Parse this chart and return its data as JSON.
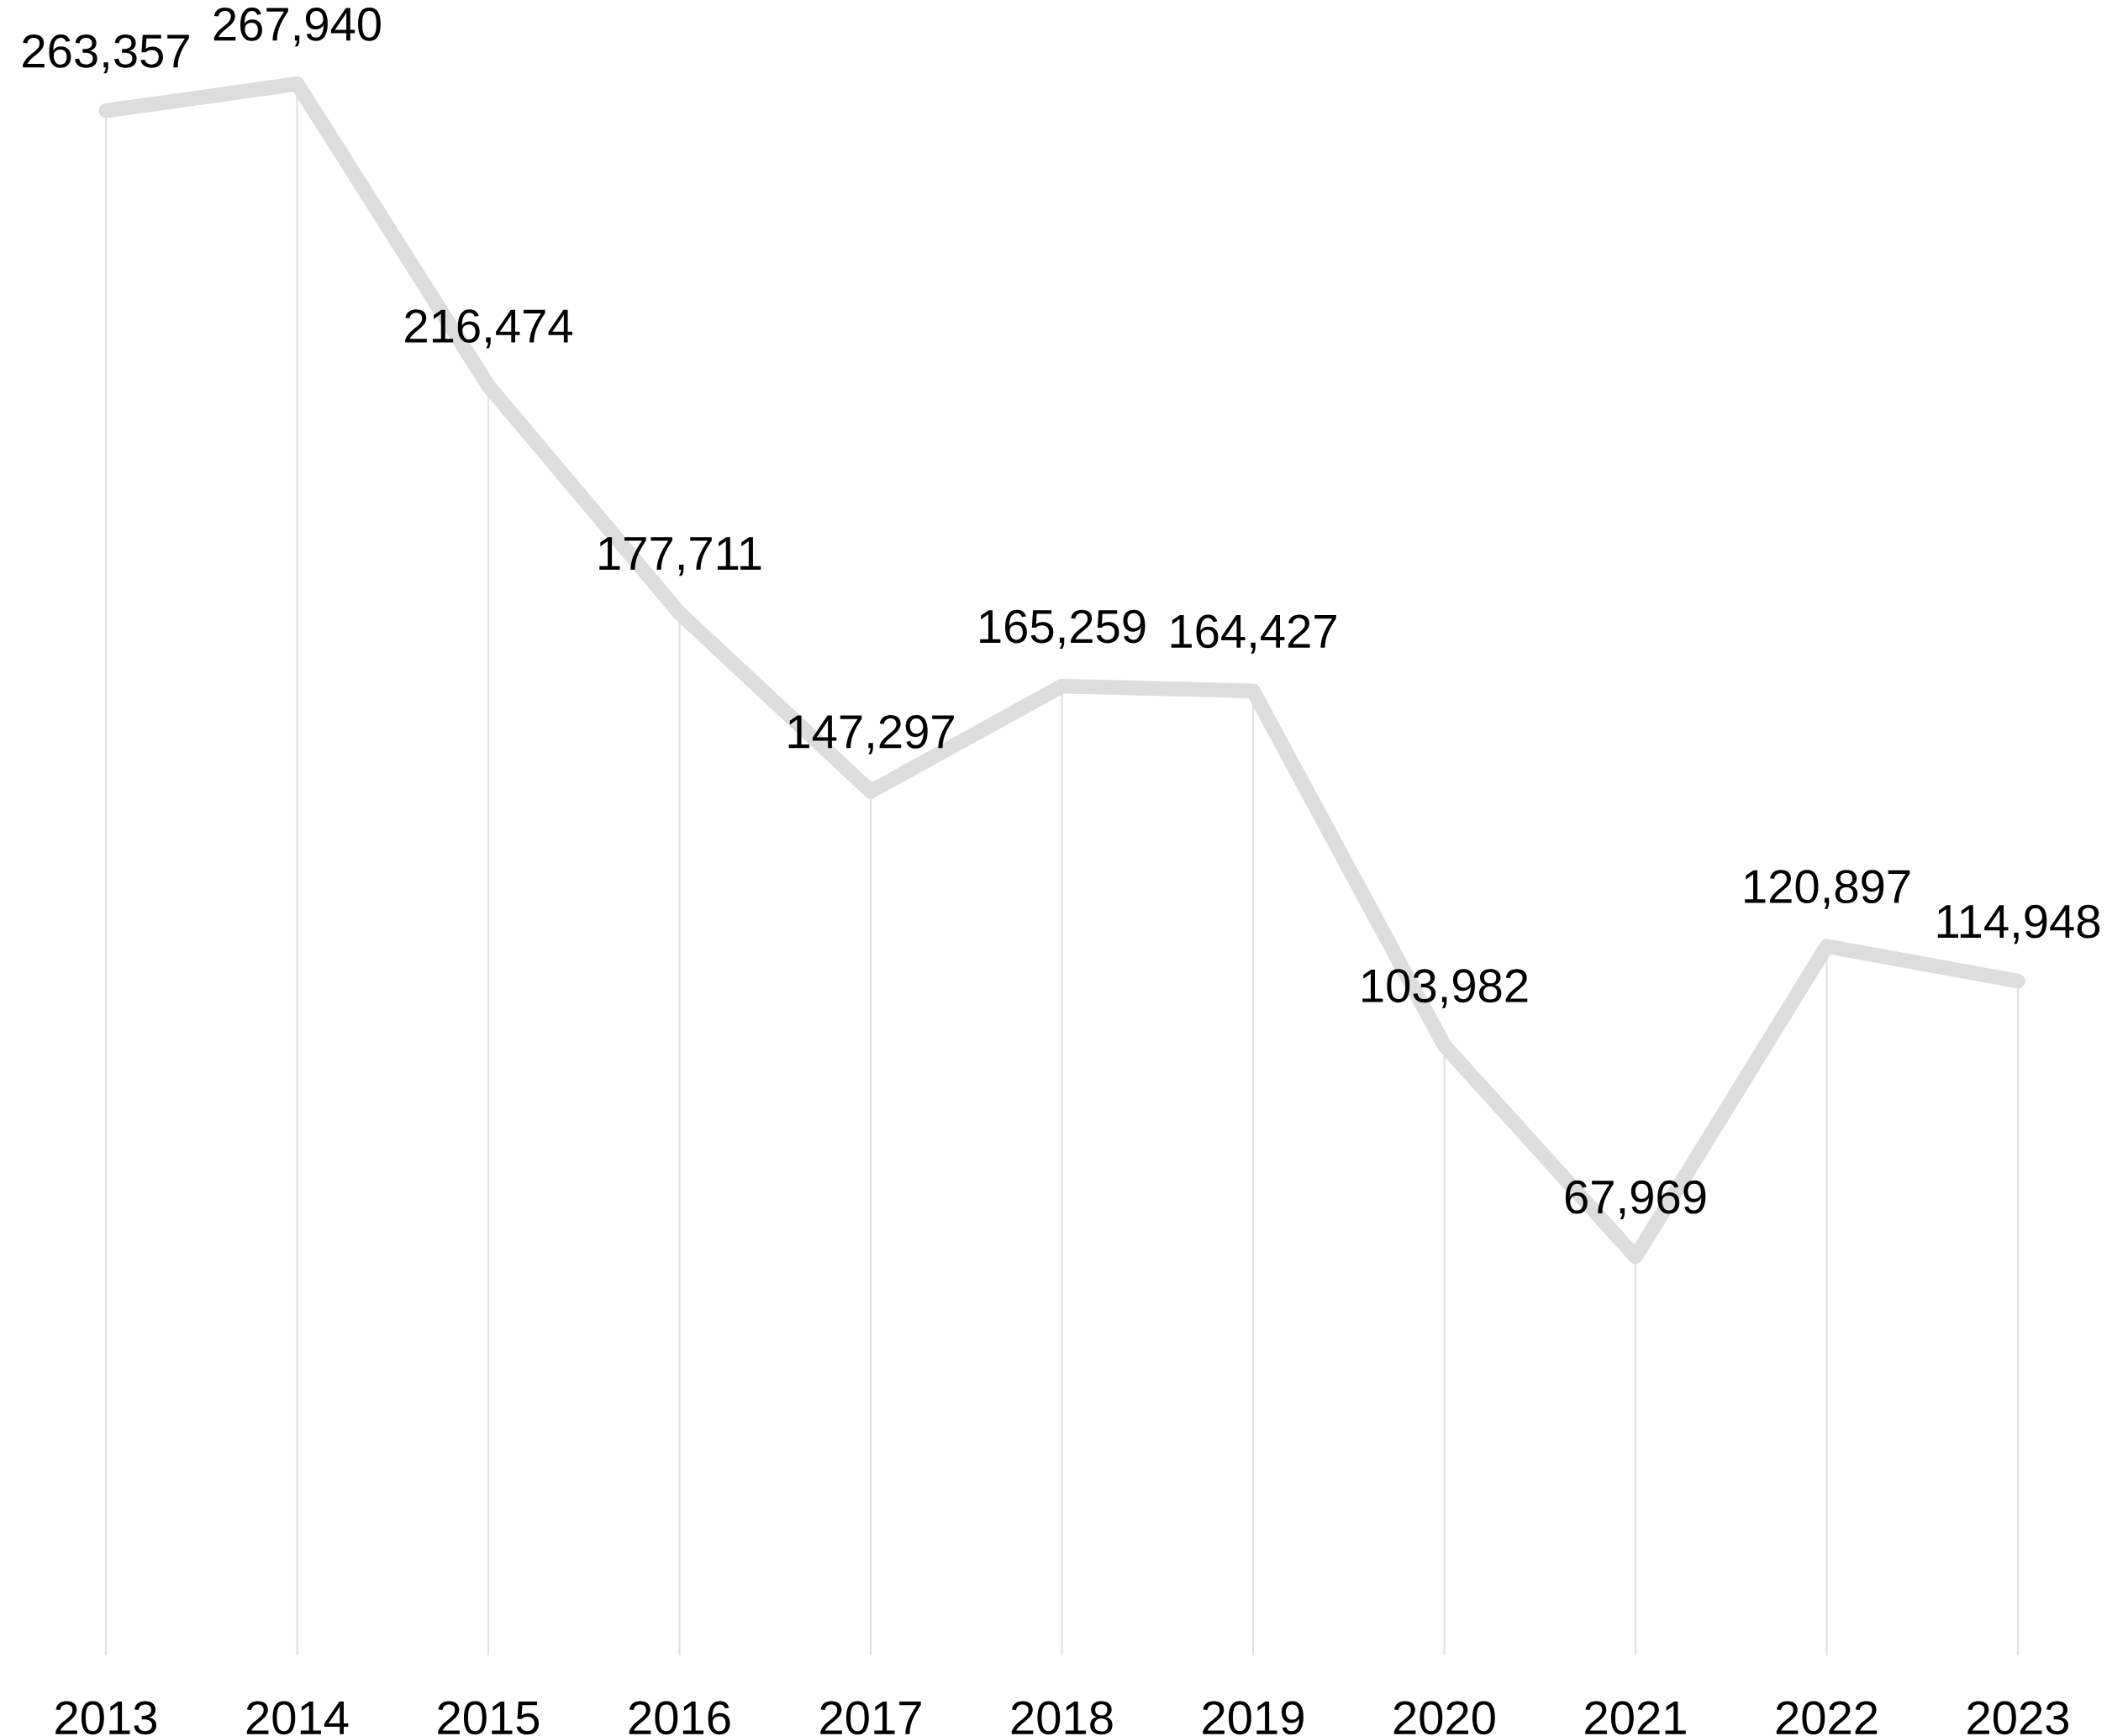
{
  "chart_data": {
    "type": "line",
    "categories": [
      "2013",
      "2014",
      "2015",
      "2016",
      "2017",
      "2018",
      "2019",
      "2020",
      "2021",
      "2022",
      "2023"
    ],
    "values": [
      263357,
      267940,
      216474,
      177711,
      147297,
      165259,
      164427,
      103982,
      67969,
      120897,
      114948
    ],
    "value_labels": [
      "263,357",
      "267,940",
      "216,474",
      "177,711",
      "147,297",
      "165,259",
      "164,427",
      "103,982",
      "67,969",
      "120,897",
      "114,948"
    ],
    "color": "#dddddd",
    "grid": "x",
    "marker": "none",
    "line_style": "solid"
  }
}
